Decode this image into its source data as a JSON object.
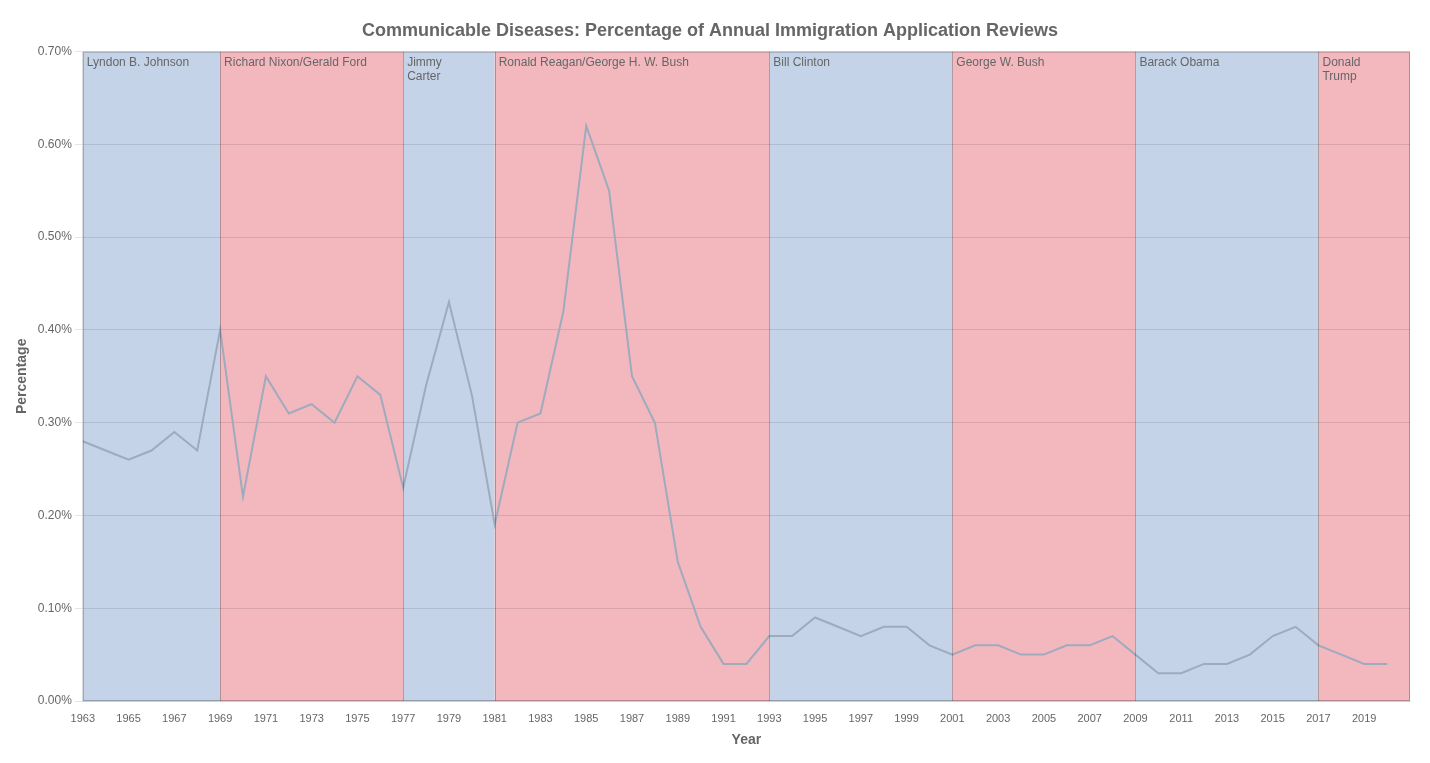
{
  "chart_data": {
    "type": "line",
    "title": "Communicable Diseases: Percentage of Annual Immigration Application Reviews",
    "xlabel": "Year",
    "ylabel": "Percentage",
    "x": [
      1963,
      1964,
      1965,
      1966,
      1967,
      1968,
      1969,
      1970,
      1971,
      1972,
      1973,
      1974,
      1975,
      1976,
      1977,
      1978,
      1979,
      1980,
      1981,
      1982,
      1983,
      1984,
      1985,
      1986,
      1987,
      1988,
      1989,
      1990,
      1991,
      1992,
      1993,
      1994,
      1995,
      1996,
      1997,
      1998,
      1999,
      2000,
      2001,
      2002,
      2003,
      2004,
      2005,
      2006,
      2007,
      2008,
      2009,
      2010,
      2011,
      2012,
      2013,
      2014,
      2015,
      2016,
      2017,
      2018,
      2019,
      2020
    ],
    "values": [
      0.0028,
      0.0027,
      0.0026,
      0.0027,
      0.0029,
      0.0027,
      0.004,
      0.0022,
      0.0035,
      0.0031,
      0.0032,
      0.003,
      0.0035,
      0.0033,
      0.0023,
      0.0034,
      0.0043,
      0.0033,
      0.0019,
      0.003,
      0.0031,
      0.0042,
      0.0062,
      0.0055,
      0.0035,
      0.003,
      0.0015,
      0.0008,
      0.0004,
      0.0004,
      0.0007,
      0.0007,
      0.0009,
      0.0008,
      0.0007,
      0.0008,
      0.0008,
      0.0006,
      0.0005,
      0.0006,
      0.0006,
      0.0005,
      0.0005,
      0.0006,
      0.0006,
      0.0007,
      0.0005,
      0.0003,
      0.0003,
      0.0004,
      0.0004,
      0.0005,
      0.0007,
      0.0008,
      0.0006,
      0.0005,
      0.0004,
      0.0004
    ],
    "color": "#9eaabe",
    "xlim": [
      1963,
      2021
    ],
    "xticks": [
      1963,
      1965,
      1967,
      1969,
      1971,
      1973,
      1975,
      1977,
      1979,
      1981,
      1983,
      1985,
      1987,
      1989,
      1991,
      1993,
      1995,
      1997,
      1999,
      2001,
      2003,
      2005,
      2007,
      2009,
      2011,
      2013,
      2015,
      2017,
      2019
    ],
    "ylim": [
      0.0,
      0.007
    ],
    "yticks": [
      {
        "value": 0.0,
        "label": "0.00%"
      },
      {
        "value": 0.001,
        "label": "0.10%"
      },
      {
        "value": 0.002,
        "label": "0.20%"
      },
      {
        "value": 0.003,
        "label": "0.30%"
      },
      {
        "value": 0.004,
        "label": "0.40%"
      },
      {
        "value": 0.005,
        "label": "0.50%"
      },
      {
        "value": 0.006,
        "label": "0.60%"
      },
      {
        "value": 0.007,
        "label": "0.70%"
      }
    ],
    "grid": "y",
    "annotations": [
      {
        "text": "Lyndon B. Johnson",
        "x_start": 1963,
        "x_end": 1969,
        "color": "#c5d3e8"
      },
      {
        "text": "Richard Nixon/Gerald Ford",
        "x_start": 1969,
        "x_end": 1977,
        "color": "#f2b8be"
      },
      {
        "text": "Jimmy\nCarter",
        "x_start": 1977,
        "x_end": 1981,
        "color": "#c5d3e8"
      },
      {
        "text": "Ronald Reagan/George H. W. Bush",
        "x_start": 1981,
        "x_end": 1993,
        "color": "#f2b8be"
      },
      {
        "text": "Bill Clinton",
        "x_start": 1993,
        "x_end": 2001,
        "color": "#c5d3e8"
      },
      {
        "text": "George W. Bush",
        "x_start": 2001,
        "x_end": 2009,
        "color": "#f2b8be"
      },
      {
        "text": "Barack Obama",
        "x_start": 2009,
        "x_end": 2017,
        "color": "#c5d3e8"
      },
      {
        "text": "Donald\nTrump",
        "x_start": 2017,
        "x_end": 2021,
        "color": "#f2b8be"
      }
    ]
  }
}
